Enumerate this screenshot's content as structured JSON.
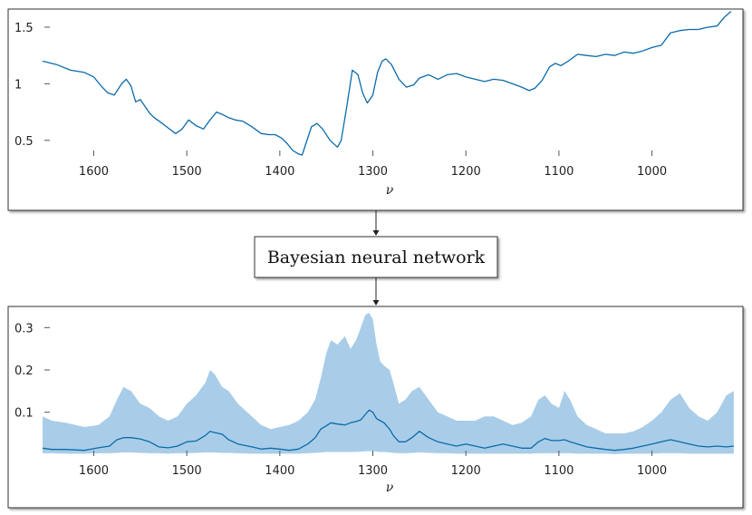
{
  "box_label": "Bayesian neural network",
  "colors": {
    "line": "#0a6bab",
    "band": "#a9cde8",
    "frame": "#333333"
  },
  "chart_data": [
    {
      "type": "line",
      "xlabel": "ν",
      "xlim": [
        1655,
        910
      ],
      "ylim": [
        0.33,
        1.66
      ],
      "xticks": [
        "1600",
        "1500",
        "1400",
        "1300",
        "1200",
        "1100",
        "1000"
      ],
      "yticks": [
        "0.5",
        "1",
        "1.5"
      ],
      "series": [
        {
          "x": [
            1655,
            1640,
            1625,
            1610,
            1600,
            1592,
            1585,
            1578,
            1570,
            1565,
            1560,
            1555,
            1550,
            1545,
            1540,
            1535,
            1528,
            1520,
            1512,
            1505,
            1498,
            1490,
            1482,
            1475,
            1468,
            1462,
            1455,
            1448,
            1440,
            1430,
            1420,
            1412,
            1405,
            1398,
            1392,
            1386,
            1380,
            1376,
            1372,
            1366,
            1360,
            1354,
            1346,
            1338,
            1334,
            1328,
            1322,
            1316,
            1311,
            1306,
            1300,
            1295,
            1290,
            1286,
            1280,
            1272,
            1264,
            1256,
            1250,
            1240,
            1230,
            1220,
            1210,
            1200,
            1190,
            1180,
            1170,
            1160,
            1150,
            1140,
            1132,
            1126,
            1118,
            1110,
            1104,
            1098,
            1090,
            1080,
            1070,
            1060,
            1050,
            1040,
            1030,
            1020,
            1010,
            1000,
            990,
            980,
            970,
            960,
            950,
            940,
            930,
            922,
            915
          ],
          "values": [
            1.2,
            1.17,
            1.12,
            1.1,
            1.06,
            0.98,
            0.92,
            0.9,
            1.0,
            1.04,
            0.98,
            0.84,
            0.86,
            0.8,
            0.74,
            0.7,
            0.66,
            0.61,
            0.56,
            0.6,
            0.68,
            0.63,
            0.6,
            0.68,
            0.75,
            0.73,
            0.7,
            0.68,
            0.67,
            0.62,
            0.56,
            0.55,
            0.55,
            0.52,
            0.47,
            0.41,
            0.38,
            0.37,
            0.47,
            0.62,
            0.65,
            0.6,
            0.5,
            0.44,
            0.5,
            0.8,
            1.12,
            1.08,
            0.92,
            0.83,
            0.9,
            1.1,
            1.2,
            1.22,
            1.17,
            1.04,
            0.97,
            0.99,
            1.05,
            1.08,
            1.04,
            1.08,
            1.09,
            1.06,
            1.04,
            1.02,
            1.04,
            1.03,
            1.0,
            0.97,
            0.94,
            0.96,
            1.03,
            1.15,
            1.18,
            1.16,
            1.2,
            1.26,
            1.25,
            1.24,
            1.26,
            1.25,
            1.28,
            1.27,
            1.29,
            1.32,
            1.34,
            1.45,
            1.47,
            1.48,
            1.48,
            1.5,
            1.51,
            1.59,
            1.64
          ]
        }
      ]
    },
    {
      "type": "area",
      "xlabel": "ν",
      "xlim": [
        1655,
        910
      ],
      "ylim": [
        -0.01,
        0.35
      ],
      "xticks": [
        "1600",
        "1500",
        "1400",
        "1300",
        "1200",
        "1100",
        "1000"
      ],
      "yticks": [
        "0.1",
        "0.2",
        "0.3"
      ],
      "series": [
        {
          "x": [
            1655,
            1645,
            1630,
            1610,
            1595,
            1583,
            1575,
            1568,
            1560,
            1550,
            1540,
            1530,
            1520,
            1510,
            1500,
            1490,
            1480,
            1475,
            1470,
            1462,
            1455,
            1445,
            1430,
            1420,
            1410,
            1400,
            1390,
            1380,
            1370,
            1362,
            1356,
            1350,
            1345,
            1338,
            1330,
            1324,
            1318,
            1313,
            1308,
            1304,
            1300,
            1296,
            1292,
            1288,
            1282,
            1278,
            1272,
            1265,
            1258,
            1250,
            1240,
            1230,
            1220,
            1210,
            1200,
            1190,
            1180,
            1170,
            1160,
            1150,
            1140,
            1130,
            1122,
            1115,
            1108,
            1100,
            1094,
            1088,
            1080,
            1070,
            1060,
            1050,
            1040,
            1030,
            1020,
            1010,
            1000,
            990,
            980,
            970,
            960,
            950,
            940,
            930,
            920,
            912
          ],
          "values": [
            0.015,
            0.012,
            0.012,
            0.01,
            0.016,
            0.02,
            0.035,
            0.04,
            0.04,
            0.037,
            0.03,
            0.018,
            0.016,
            0.02,
            0.03,
            0.032,
            0.045,
            0.055,
            0.052,
            0.048,
            0.035,
            0.025,
            0.018,
            0.013,
            0.015,
            0.013,
            0.01,
            0.013,
            0.025,
            0.04,
            0.06,
            0.068,
            0.075,
            0.072,
            0.07,
            0.075,
            0.078,
            0.082,
            0.095,
            0.105,
            0.1,
            0.085,
            0.08,
            0.075,
            0.06,
            0.045,
            0.03,
            0.03,
            0.04,
            0.055,
            0.04,
            0.03,
            0.025,
            0.02,
            0.025,
            0.02,
            0.015,
            0.02,
            0.025,
            0.02,
            0.015,
            0.015,
            0.03,
            0.038,
            0.033,
            0.033,
            0.035,
            0.03,
            0.025,
            0.018,
            0.015,
            0.012,
            0.01,
            0.012,
            0.015,
            0.02,
            0.025,
            0.03,
            0.035,
            0.03,
            0.025,
            0.02,
            0.018,
            0.02,
            0.018,
            0.02
          ],
          "upper": [
            0.09,
            0.08,
            0.075,
            0.065,
            0.07,
            0.09,
            0.13,
            0.16,
            0.15,
            0.12,
            0.11,
            0.09,
            0.08,
            0.09,
            0.12,
            0.14,
            0.17,
            0.2,
            0.19,
            0.16,
            0.15,
            0.12,
            0.09,
            0.07,
            0.06,
            0.065,
            0.07,
            0.08,
            0.1,
            0.13,
            0.18,
            0.24,
            0.27,
            0.26,
            0.28,
            0.25,
            0.27,
            0.3,
            0.33,
            0.335,
            0.32,
            0.26,
            0.22,
            0.21,
            0.2,
            0.17,
            0.12,
            0.13,
            0.15,
            0.16,
            0.13,
            0.1,
            0.09,
            0.08,
            0.08,
            0.08,
            0.09,
            0.09,
            0.08,
            0.07,
            0.075,
            0.09,
            0.13,
            0.14,
            0.12,
            0.11,
            0.15,
            0.13,
            0.09,
            0.07,
            0.06,
            0.05,
            0.05,
            0.05,
            0.055,
            0.065,
            0.08,
            0.1,
            0.13,
            0.145,
            0.11,
            0.09,
            0.08,
            0.1,
            0.14,
            0.15
          ],
          "lower": [
            0.003,
            0.003,
            0.002,
            0.002,
            0.003,
            0.003,
            0.004,
            0.005,
            0.005,
            0.004,
            0.003,
            0.003,
            0.002,
            0.003,
            0.003,
            0.004,
            0.005,
            0.005,
            0.005,
            0.004,
            0.004,
            0.003,
            0.002,
            0.002,
            0.002,
            0.002,
            0.002,
            0.002,
            0.003,
            0.004,
            0.005,
            0.006,
            0.006,
            0.006,
            0.006,
            0.006,
            0.006,
            0.007,
            0.008,
            0.008,
            0.008,
            0.007,
            0.006,
            0.006,
            0.005,
            0.004,
            0.003,
            0.003,
            0.004,
            0.005,
            0.004,
            0.003,
            0.003,
            0.002,
            0.002,
            0.002,
            0.002,
            0.002,
            0.002,
            0.002,
            0.002,
            0.002,
            0.003,
            0.003,
            0.003,
            0.003,
            0.003,
            0.003,
            0.002,
            0.002,
            0.002,
            0.002,
            0.001,
            0.002,
            0.002,
            0.002,
            0.002,
            0.003,
            0.003,
            0.003,
            0.002,
            0.002,
            0.002,
            0.002,
            0.002,
            0.002
          ]
        }
      ]
    }
  ]
}
